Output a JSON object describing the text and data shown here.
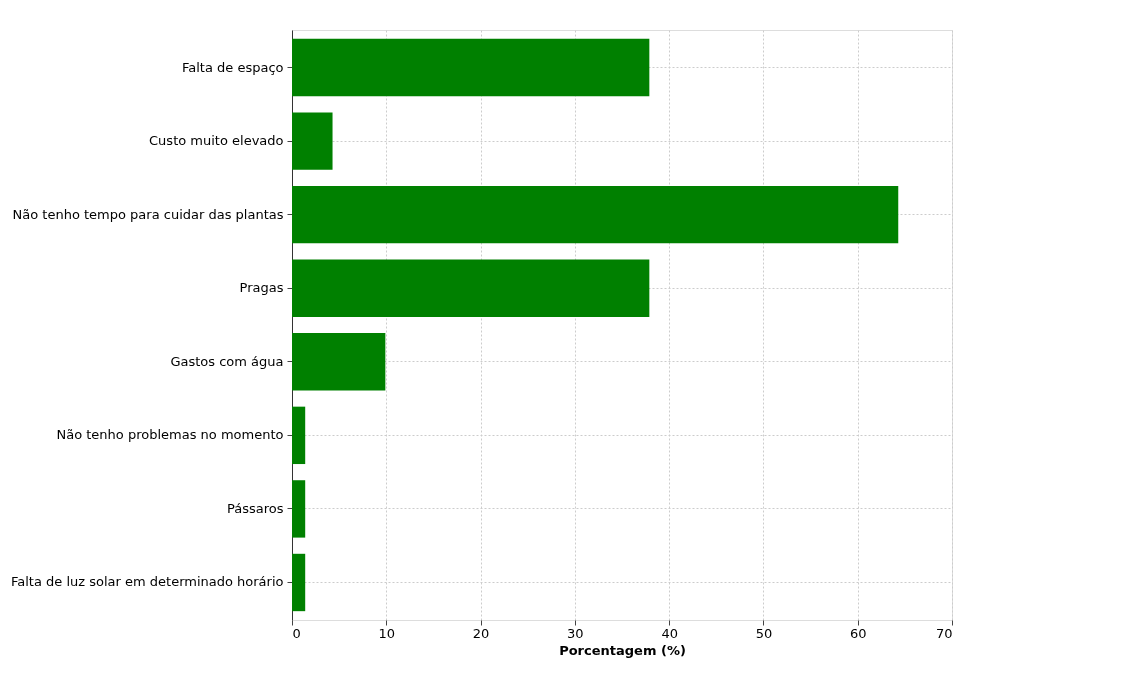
{
  "chart_data": {
    "type": "bar",
    "orientation": "horizontal",
    "xlabel": "Porcentagem (%)",
    "categories": [
      "Falta de espaço",
      "Custo muito elevado",
      "Não tenho tempo para cuidar das plantas",
      "Pragas",
      "Gastos com água",
      "Não tenho problemas no momento",
      "Pássaros",
      "Falta de luz solar em determinado horário"
    ],
    "values": [
      37.9,
      4.3,
      64.3,
      37.9,
      9.9,
      1.4,
      1.4,
      1.4
    ],
    "color": "#008000",
    "xlim": [
      0,
      70
    ],
    "xticks": [
      0,
      10,
      20,
      30,
      40,
      50,
      60,
      70
    ],
    "grid": true
  }
}
